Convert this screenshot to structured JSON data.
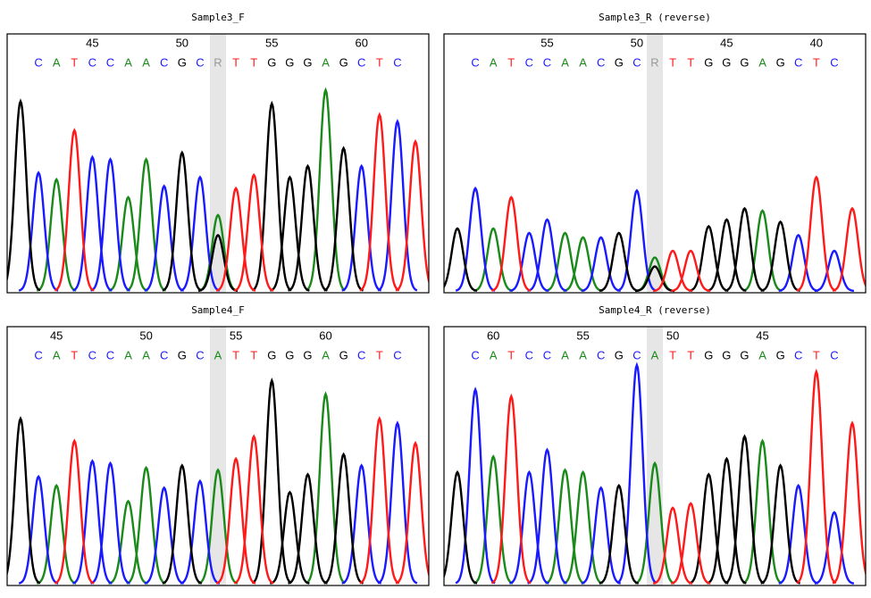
{
  "chart_data": [
    {
      "type": "chromatogram",
      "title": "Sample3_F",
      "bases": [
        null,
        "C",
        "A",
        "T",
        "C",
        "C",
        "A",
        "A",
        "C",
        "G",
        "C",
        "R",
        "T",
        "T",
        "G",
        "G",
        "G",
        "A",
        "G",
        "C",
        "T",
        "C",
        null
      ],
      "position_labels": [
        null,
        null,
        null,
        null,
        45,
        null,
        null,
        null,
        null,
        50,
        null,
        null,
        null,
        null,
        55,
        null,
        null,
        null,
        null,
        60,
        null,
        null,
        null
      ],
      "highlight_index": 11,
      "ambiguous_color": "#999999",
      "channels": {
        "A": {
          "color": "#1a8a1a",
          "values": [
            null,
            null,
            50,
            null,
            null,
            null,
            42,
            59,
            null,
            null,
            null,
            34,
            null,
            null,
            null,
            null,
            null,
            90,
            null,
            null,
            null,
            null,
            null
          ]
        },
        "C": {
          "color": "#1a1aff",
          "values": [
            null,
            53,
            null,
            null,
            60,
            59,
            null,
            null,
            47,
            null,
            51,
            null,
            null,
            null,
            null,
            null,
            null,
            null,
            null,
            56,
            null,
            76,
            null
          ]
        },
        "G": {
          "color": "#000000",
          "values": [
            85,
            null,
            null,
            null,
            null,
            null,
            null,
            null,
            null,
            62,
            null,
            25,
            null,
            null,
            84,
            51,
            56,
            null,
            64,
            null,
            null,
            null,
            null
          ]
        },
        "T": {
          "color": "#ff1a1a",
          "values": [
            null,
            null,
            null,
            72,
            null,
            null,
            null,
            null,
            null,
            null,
            null,
            null,
            46,
            52,
            null,
            null,
            null,
            null,
            null,
            null,
            79,
            null,
            67
          ]
        }
      }
    },
    {
      "type": "chromatogram",
      "title": "Sample3_R (reverse)",
      "bases": [
        null,
        "C",
        "A",
        "T",
        "C",
        "C",
        "A",
        "A",
        "C",
        "G",
        "C",
        "R",
        "T",
        "T",
        "G",
        "G",
        "G",
        "A",
        "G",
        "C",
        "T",
        "C",
        null
      ],
      "position_labels": [
        null,
        null,
        null,
        null,
        null,
        55,
        null,
        null,
        null,
        null,
        50,
        null,
        null,
        null,
        null,
        45,
        null,
        null,
        null,
        null,
        40,
        null,
        null
      ],
      "highlight_index": 11,
      "ambiguous_color": "#999999",
      "channels": {
        "A": {
          "color": "#1a8a1a",
          "values": [
            null,
            null,
            28,
            null,
            null,
            null,
            26,
            24,
            null,
            null,
            null,
            15,
            null,
            null,
            null,
            null,
            null,
            36,
            null,
            null,
            null,
            null,
            null
          ]
        },
        "C": {
          "color": "#1a1aff",
          "values": [
            null,
            46,
            null,
            null,
            26,
            32,
            null,
            null,
            24,
            null,
            45,
            null,
            null,
            null,
            null,
            null,
            null,
            null,
            null,
            25,
            null,
            18,
            null
          ]
        },
        "G": {
          "color": "#000000",
          "values": [
            28,
            null,
            null,
            null,
            null,
            null,
            null,
            null,
            null,
            26,
            null,
            11,
            null,
            null,
            29,
            32,
            37,
            null,
            31,
            null,
            null,
            null,
            null
          ]
        },
        "T": {
          "color": "#ff1a1a",
          "values": [
            null,
            null,
            null,
            42,
            null,
            null,
            null,
            null,
            null,
            null,
            null,
            null,
            18,
            18,
            null,
            null,
            null,
            null,
            null,
            null,
            51,
            null,
            37
          ]
        }
      }
    },
    {
      "type": "chromatogram",
      "title": "Sample4_F",
      "bases": [
        null,
        "C",
        "A",
        "T",
        "C",
        "C",
        "A",
        "A",
        "C",
        "G",
        "C",
        "A",
        "T",
        "T",
        "G",
        "G",
        "G",
        "A",
        "G",
        "C",
        "T",
        "C",
        null
      ],
      "position_labels": [
        null,
        null,
        45,
        null,
        null,
        null,
        null,
        50,
        null,
        null,
        null,
        null,
        55,
        null,
        null,
        null,
        null,
        60,
        null,
        null,
        null,
        null,
        null
      ],
      "highlight_index": 11,
      "ambiguous_color": "#999999",
      "channels": {
        "A": {
          "color": "#1a8a1a",
          "values": [
            null,
            null,
            44,
            null,
            null,
            null,
            37,
            52,
            null,
            null,
            null,
            51,
            null,
            null,
            null,
            null,
            null,
            85,
            null,
            null,
            null,
            null,
            null
          ]
        },
        "C": {
          "color": "#1a1aff",
          "values": [
            null,
            48,
            null,
            null,
            55,
            54,
            null,
            null,
            43,
            null,
            46,
            null,
            null,
            null,
            null,
            null,
            null,
            null,
            null,
            53,
            null,
            72,
            null
          ]
        },
        "G": {
          "color": "#000000",
          "values": [
            74,
            null,
            null,
            null,
            null,
            null,
            null,
            null,
            null,
            53,
            null,
            null,
            null,
            null,
            91,
            41,
            49,
            null,
            58,
            null,
            null,
            null,
            null
          ]
        },
        "T": {
          "color": "#ff1a1a",
          "values": [
            null,
            null,
            null,
            64,
            null,
            null,
            null,
            null,
            null,
            null,
            null,
            null,
            56,
            66,
            null,
            null,
            null,
            null,
            null,
            null,
            74,
            null,
            63
          ]
        }
      }
    },
    {
      "type": "chromatogram",
      "title": "Sample4_R (reverse)",
      "bases": [
        null,
        "C",
        "A",
        "T",
        "C",
        "C",
        "A",
        "A",
        "C",
        "G",
        "C",
        "A",
        "T",
        "T",
        "G",
        "G",
        "G",
        "A",
        "G",
        "C",
        "T",
        "C",
        null
      ],
      "position_labels": [
        null,
        null,
        60,
        null,
        null,
        null,
        null,
        55,
        null,
        null,
        null,
        null,
        50,
        null,
        null,
        null,
        null,
        45,
        null,
        null,
        null,
        null,
        null
      ],
      "highlight_index": 11,
      "ambiguous_color": "#999999",
      "channels": {
        "A": {
          "color": "#1a8a1a",
          "values": [
            null,
            null,
            57,
            null,
            null,
            null,
            51,
            50,
            null,
            null,
            null,
            54,
            null,
            null,
            null,
            null,
            null,
            64,
            null,
            null,
            null,
            null,
            null
          ]
        },
        "C": {
          "color": "#1a1aff",
          "values": [
            null,
            87,
            null,
            null,
            50,
            60,
            null,
            null,
            43,
            null,
            98,
            null,
            null,
            null,
            null,
            null,
            null,
            null,
            null,
            44,
            null,
            32,
            null
          ]
        },
        "G": {
          "color": "#000000",
          "values": [
            50,
            null,
            null,
            null,
            null,
            null,
            null,
            null,
            null,
            44,
            null,
            null,
            null,
            null,
            49,
            56,
            66,
            null,
            53,
            null,
            null,
            null,
            null
          ]
        },
        "T": {
          "color": "#ff1a1a",
          "values": [
            null,
            null,
            null,
            84,
            null,
            null,
            null,
            null,
            null,
            null,
            null,
            null,
            34,
            36,
            null,
            null,
            null,
            null,
            null,
            null,
            95,
            null,
            72
          ]
        }
      }
    }
  ]
}
